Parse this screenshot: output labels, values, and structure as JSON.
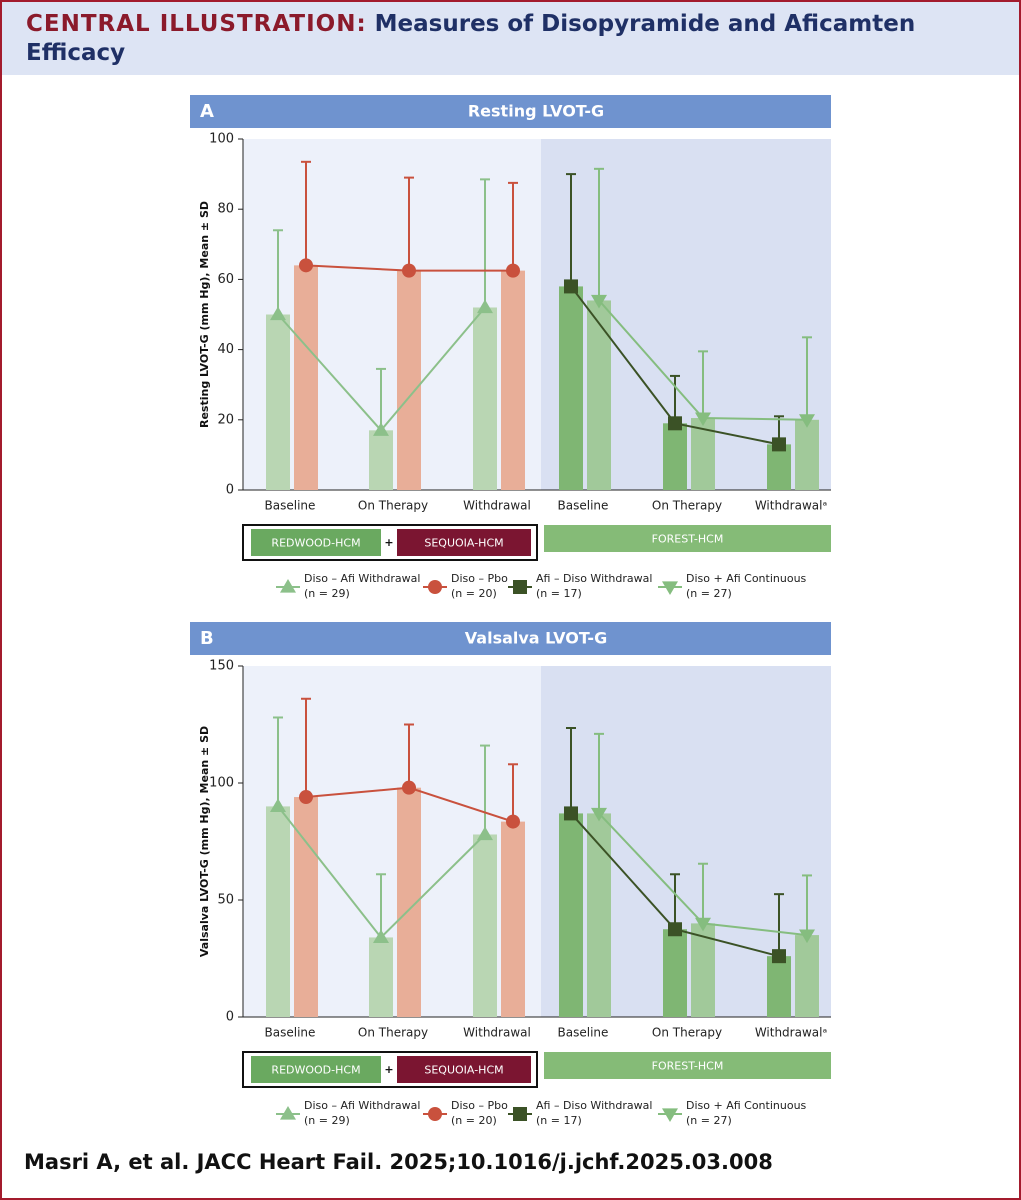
{
  "header": {
    "label": "CENTRAL ILLUSTRATION:",
    "title": "Measures of Disopyramide and Aficamten Efficacy"
  },
  "citation": "Masri A, et al. JACC Heart Fail. 2025;10.1016/j.jchf.2025.03.008",
  "chart_data": [
    {
      "type": "bar",
      "panel": "A",
      "title": "Resting LVOT-G",
      "ylabel": "Resting LVOT-G (mm Hg), Mean ± SD",
      "ylim": [
        0,
        100
      ],
      "yticks": [
        0,
        20,
        40,
        60,
        80,
        100
      ],
      "categories": [
        "Baseline",
        "On Therapy",
        "Withdrawal",
        "Baseline",
        "On Therapy",
        "Withdrawalᵃ"
      ],
      "studies": [
        {
          "name": "REDWOOD-HCM",
          "color": "#6aa960"
        },
        {
          "name": "SEQUOIA-HCM",
          "color": "#7b1531"
        },
        {
          "name": "FOREST-HCM",
          "color": "#85bb77"
        }
      ],
      "joiner": "+",
      "series": [
        {
          "name": "Diso – Afi Withdrawal",
          "n": "(n = 29)",
          "color": "#b9d6b3",
          "line_color": "#8cc08a",
          "marker": "triangle-up",
          "values": [
            50,
            17,
            52,
            null,
            null,
            null
          ],
          "errors": [
            24,
            17.5,
            36.5,
            null,
            null,
            null
          ]
        },
        {
          "name": "Diso – Pbo",
          "n": "(n = 20)",
          "color": "#e8ae98",
          "line_color": "#c9513d",
          "marker": "circle",
          "values": [
            64,
            62.5,
            62.5,
            null,
            null,
            null
          ],
          "errors": [
            29.5,
            26.5,
            25,
            null,
            null,
            null
          ]
        },
        {
          "name": "Afi – Diso Withdrawal",
          "n": "(n = 17)",
          "color": "#7fb673",
          "line_color": "#3b5226",
          "marker": "square",
          "values": [
            null,
            null,
            null,
            58,
            19,
            13
          ],
          "errors": [
            null,
            null,
            null,
            32,
            13.5,
            8
          ]
        },
        {
          "name": "Diso + Afi Continuous",
          "n": "(n = 27)",
          "color": "#a1c99a",
          "line_color": "#85bd7f",
          "marker": "triangle-down",
          "values": [
            null,
            null,
            null,
            54,
            20.5,
            20
          ],
          "errors": [
            null,
            null,
            null,
            37.5,
            19,
            23.5
          ]
        }
      ]
    },
    {
      "type": "bar",
      "panel": "B",
      "title": "Valsalva LVOT-G",
      "ylabel": "Valsalva LVOT-G (mm Hg), Mean ± SD",
      "ylim": [
        0,
        150
      ],
      "yticks": [
        0,
        50,
        100,
        150
      ],
      "categories": [
        "Baseline",
        "On Therapy",
        "Withdrawal",
        "Baseline",
        "On Therapy",
        "Withdrawalᵃ"
      ],
      "studies": [
        {
          "name": "REDWOOD-HCM",
          "color": "#6aa960"
        },
        {
          "name": "SEQUOIA-HCM",
          "color": "#7b1531"
        },
        {
          "name": "FOREST-HCM",
          "color": "#85bb77"
        }
      ],
      "joiner": "+",
      "series": [
        {
          "name": "Diso – Afi Withdrawal",
          "n": "(n = 29)",
          "color": "#b9d6b3",
          "line_color": "#8cc08a",
          "marker": "triangle-up",
          "values": [
            90,
            34,
            78,
            null,
            null,
            null
          ],
          "errors": [
            38,
            27,
            38,
            null,
            null,
            null
          ]
        },
        {
          "name": "Diso – Pbo",
          "n": "(n = 20)",
          "color": "#e8ae98",
          "line_color": "#c9513d",
          "marker": "circle",
          "values": [
            94,
            98,
            83.5,
            null,
            null,
            null
          ],
          "errors": [
            42,
            27,
            24.5,
            null,
            null,
            null
          ]
        },
        {
          "name": "Afi – Diso Withdrawal",
          "n": "(n = 17)",
          "color": "#7fb673",
          "line_color": "#3b5226",
          "marker": "square",
          "values": [
            null,
            null,
            null,
            87,
            37.5,
            26
          ],
          "errors": [
            null,
            null,
            null,
            36.5,
            23.5,
            26.5
          ]
        },
        {
          "name": "Diso + Afi Continuous",
          "n": "(n = 27)",
          "color": "#a1c99a",
          "line_color": "#85bd7f",
          "marker": "triangle-down",
          "values": [
            null,
            null,
            null,
            87,
            40,
            35
          ],
          "errors": [
            null,
            null,
            null,
            34,
            25.5,
            25.5
          ]
        }
      ]
    }
  ]
}
